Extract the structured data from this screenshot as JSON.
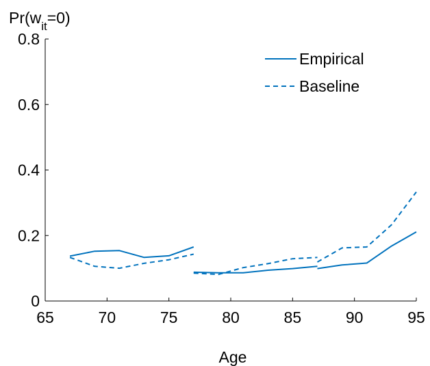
{
  "chart_data": {
    "type": "line",
    "ylabel_main": "Pr(w",
    "ylabel_sub": "it",
    "ylabel_end": "=0)",
    "xlabel": "Age",
    "xlim": [
      65,
      95
    ],
    "ylim": [
      0,
      0.8
    ],
    "xticks": [
      65,
      70,
      75,
      80,
      85,
      90,
      95
    ],
    "xtick_labels": [
      "65",
      "70",
      "75",
      "80",
      "85",
      "90",
      "95"
    ],
    "yticks": [
      0,
      0.2,
      0.4,
      0.6,
      0.8
    ],
    "ytick_labels": [
      "0",
      "0.2",
      "0.4",
      "0.6",
      "0.8"
    ],
    "grid": false,
    "legend_position": "top-right",
    "color": "#0072BD",
    "series": [
      {
        "name": "Empirical",
        "style": "solid",
        "segments": [
          {
            "x": [
              67,
              69,
              71,
              73,
              75,
              77
            ],
            "y": [
              0.137,
              0.152,
              0.154,
              0.133,
              0.138,
              0.165
            ]
          },
          {
            "x": [
              77,
              79,
              81,
              83,
              85,
              87
            ],
            "y": [
              0.088,
              0.086,
              0.086,
              0.094,
              0.099,
              0.106
            ]
          },
          {
            "x": [
              87,
              89,
              91,
              93,
              95
            ],
            "y": [
              0.099,
              0.11,
              0.116,
              0.168,
              0.211
            ]
          }
        ]
      },
      {
        "name": "Baseline",
        "style": "dashed",
        "segments": [
          {
            "x": [
              67,
              69,
              71,
              73,
              75,
              77
            ],
            "y": [
              0.133,
              0.106,
              0.1,
              0.115,
              0.126,
              0.143
            ]
          },
          {
            "x": [
              77,
              79,
              81,
              83,
              85,
              87
            ],
            "y": [
              0.085,
              0.081,
              0.102,
              0.114,
              0.129,
              0.133
            ]
          },
          {
            "x": [
              87,
              89,
              91,
              93,
              95
            ],
            "y": [
              0.119,
              0.162,
              0.165,
              0.233,
              0.333
            ]
          }
        ]
      }
    ]
  }
}
